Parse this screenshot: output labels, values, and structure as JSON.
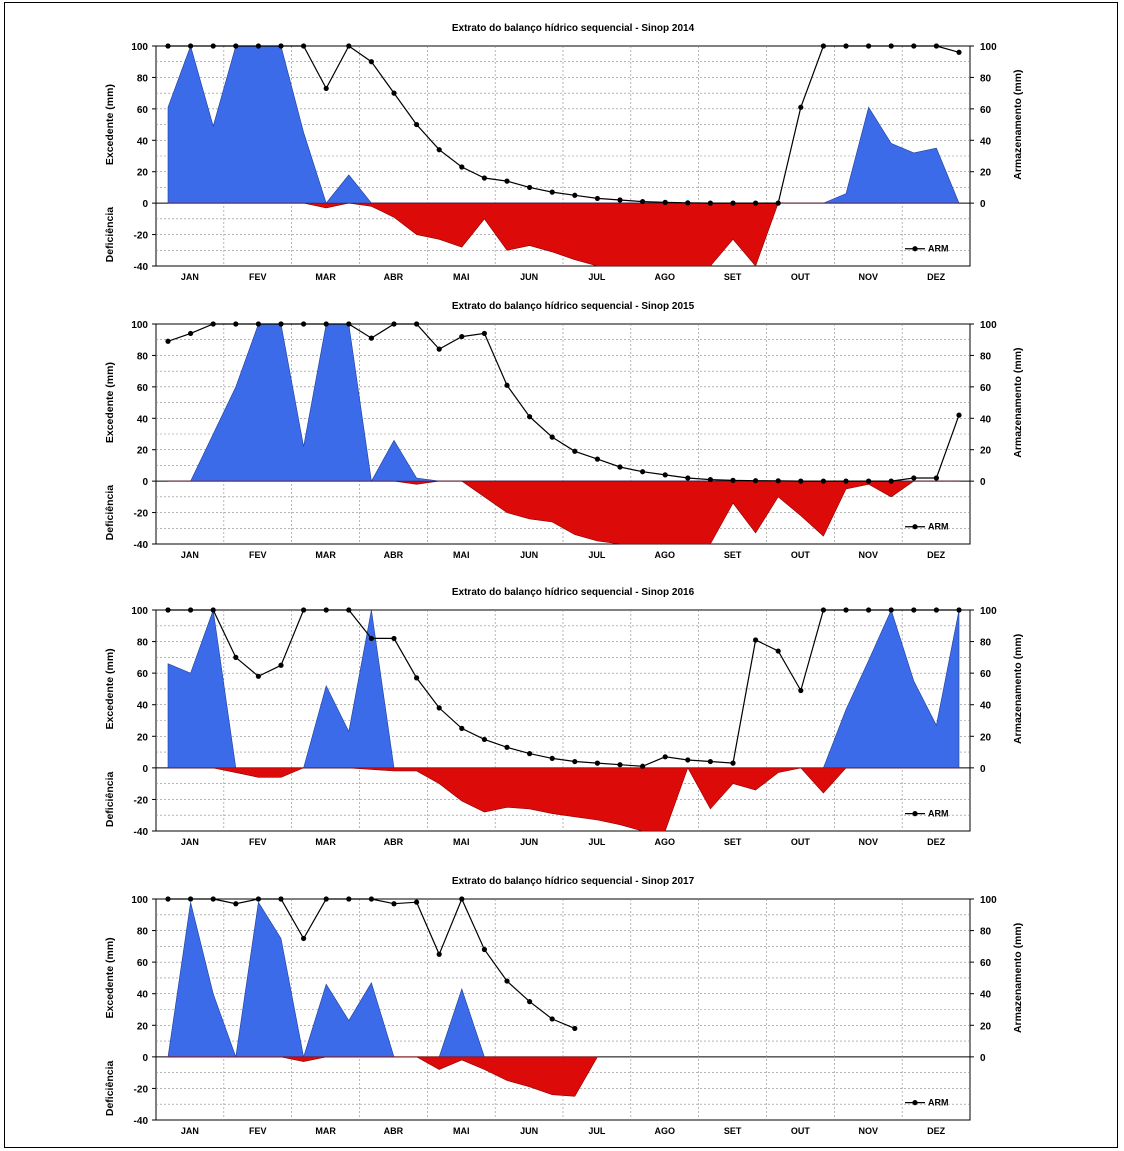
{
  "chart_data": [
    {
      "type": "area",
      "title": "Extrato do balanço hídrico sequencial - Sinop 2014",
      "ylabel_left_top": "Excedente (mm)",
      "ylabel_left_bottom": "Deficiência",
      "ylabel_right": "Armazenamento (mm)",
      "legend": "ARM",
      "legend_position": "bottom-right",
      "grid": true,
      "ylim": [
        -40,
        100
      ],
      "y_ticks_left": [
        "100",
        "80",
        "60",
        "40",
        "20",
        "0",
        "-20",
        "-40"
      ],
      "y_ticks_right": [
        "100",
        "80",
        "60",
        "40",
        "20",
        "0"
      ],
      "months": [
        "JAN",
        "FEV",
        "MAR",
        "ABR",
        "MAI",
        "JUN",
        "JUL",
        "AGO",
        "SET",
        "OUT",
        "NOV",
        "DEZ"
      ],
      "x_unit": "decêndio (1-36)",
      "excedente": [
        61,
        100,
        49,
        100,
        100,
        100,
        45,
        0,
        18,
        0,
        0,
        0,
        0,
        0,
        0,
        0,
        0,
        0,
        0,
        0,
        0,
        0,
        0,
        0,
        0,
        0,
        0,
        0,
        0,
        0,
        6,
        61,
        38,
        32,
        35,
        0
      ],
      "deficiencia": [
        0,
        0,
        0,
        0,
        0,
        0,
        0,
        -3,
        0,
        -2,
        -9,
        -20,
        -23,
        -28,
        -10,
        -30,
        -27,
        -31,
        -36,
        -40,
        -40,
        -40,
        -40,
        -40,
        -40,
        -23,
        -43,
        0,
        0,
        0,
        0,
        0,
        0,
        0,
        0,
        0
      ],
      "armazenamento": [
        100,
        100,
        100,
        100,
        100,
        100,
        100,
        73,
        100,
        90,
        70,
        50,
        34,
        23,
        16,
        14,
        10,
        7,
        5,
        3,
        2,
        1,
        0.5,
        0.2,
        0,
        0,
        0,
        0,
        61,
        100,
        100,
        100,
        100,
        100,
        100,
        96
      ]
    },
    {
      "type": "area",
      "title": "Extrato do balanço hídrico sequencial - Sinop 2015",
      "ylabel_left_top": "Excedente (mm)",
      "ylabel_left_bottom": "Deficiência",
      "ylabel_right": "Armazenamento (mm)",
      "legend": "ARM",
      "legend_position": "bottom-right",
      "grid": true,
      "ylim": [
        -40,
        100
      ],
      "y_ticks_left": [
        "100",
        "80",
        "60",
        "40",
        "20",
        "0",
        "-20",
        "-40"
      ],
      "y_ticks_right": [
        "100",
        "80",
        "60",
        "40",
        "20",
        "0"
      ],
      "months": [
        "JAN",
        "FEV",
        "MAR",
        "ABR",
        "MAI",
        "JUN",
        "JUL",
        "AGO",
        "SET",
        "OUT",
        "NOV",
        "DEZ"
      ],
      "x_unit": "decêndio (1-36)",
      "excedente": [
        0,
        0,
        30,
        60,
        100,
        100,
        22,
        100,
        100,
        0,
        26,
        2,
        0,
        0,
        0,
        0,
        0,
        0,
        0,
        0,
        0,
        0,
        0,
        0,
        0,
        0,
        0,
        0,
        0,
        0,
        0,
        0,
        0,
        0,
        0,
        0
      ],
      "deficiencia": [
        0,
        0,
        0,
        0,
        0,
        0,
        0,
        0,
        0,
        0,
        0,
        -2,
        0,
        0,
        -10,
        -20,
        -24,
        -26,
        -34,
        -38,
        -40,
        -40,
        -40,
        -40,
        -40,
        -14,
        -33,
        -10,
        -22,
        -35,
        -5,
        -2,
        -10,
        0,
        0,
        0
      ],
      "armazenamento": [
        89,
        94,
        100,
        100,
        100,
        100,
        100,
        100,
        100,
        91,
        100,
        100,
        84,
        92,
        94,
        61,
        41,
        28,
        19,
        14,
        9,
        6,
        4,
        2,
        1,
        0.5,
        0.3,
        0.2,
        0,
        0,
        0,
        0,
        0,
        2,
        2,
        42
      ]
    },
    {
      "type": "area",
      "title": "Extrato do balanço hídrico sequencial - Sinop 2016",
      "ylabel_left_top": "Excedente (mm)",
      "ylabel_left_bottom": "Deficiência",
      "ylabel_right": "Armazenamento (mm)",
      "legend": "ARM",
      "legend_position": "bottom-right",
      "grid": true,
      "ylim": [
        -40,
        100
      ],
      "y_ticks_left": [
        "100",
        "80",
        "60",
        "40",
        "20",
        "0",
        "-20",
        "-40"
      ],
      "y_ticks_right": [
        "100",
        "80",
        "60",
        "40",
        "20",
        "0"
      ],
      "months": [
        "JAN",
        "FEV",
        "MAR",
        "ABR",
        "MAI",
        "JUN",
        "JUL",
        "AGO",
        "SET",
        "OUT",
        "NOV",
        "DEZ"
      ],
      "x_unit": "decêndio (1-36)",
      "excedente": [
        66,
        60,
        100,
        0,
        0,
        0,
        0,
        52,
        23,
        100,
        0,
        0,
        0,
        0,
        0,
        0,
        0,
        0,
        0,
        0,
        0,
        0,
        0,
        0,
        0,
        0,
        0,
        0,
        0,
        0,
        37,
        68,
        100,
        55,
        27,
        100
      ],
      "deficiencia": [
        0,
        0,
        0,
        -3,
        -6,
        -6,
        0,
        0,
        0,
        -1,
        -2,
        -2,
        -10,
        -21,
        -28,
        -25,
        -26,
        -29,
        -31,
        -33,
        -36,
        -40,
        -40,
        0,
        -26,
        -10,
        -14,
        -3,
        0,
        -16,
        0,
        0,
        0,
        0,
        0,
        0
      ],
      "armazenamento": [
        100,
        100,
        100,
        70,
        58,
        65,
        100,
        100,
        100,
        82,
        82,
        57,
        38,
        25,
        18,
        13,
        9,
        6,
        4,
        3,
        2,
        1,
        7,
        5,
        4,
        3,
        81,
        74,
        49,
        100,
        100,
        100,
        100,
        100,
        100,
        100
      ]
    },
    {
      "type": "area",
      "title": "Extrato do balanço hídrico sequencial - Sinop 2017",
      "ylabel_left_top": "Excedente (mm)",
      "ylabel_left_bottom": "Deficiência",
      "ylabel_right": "Armazenamento (mm)",
      "legend": "ARM",
      "legend_position": "bottom-right",
      "grid": true,
      "ylim": [
        -40,
        100
      ],
      "y_ticks_left": [
        "100",
        "80",
        "60",
        "40",
        "20",
        "0",
        "-20",
        "-40"
      ],
      "y_ticks_right": [
        "100",
        "80",
        "60",
        "40",
        "20",
        "0"
      ],
      "months": [
        "JAN",
        "FEV",
        "MAR",
        "ABR",
        "MAI",
        "JUN",
        "JUL",
        "AGO",
        "SET",
        "OUT",
        "NOV",
        "DEZ"
      ],
      "x_unit": "decêndio (1-36)",
      "excedente": [
        0,
        98,
        40,
        0,
        98,
        75,
        0,
        46,
        23,
        47,
        0,
        0,
        0,
        43,
        0,
        null,
        null,
        null,
        null,
        null,
        null,
        null,
        null,
        null,
        null,
        null,
        null,
        null,
        null,
        null,
        null,
        null,
        null,
        null,
        null,
        null
      ],
      "deficiencia": [
        0,
        0,
        0,
        0,
        0,
        0,
        -3,
        0,
        0,
        0,
        0,
        0,
        -8,
        -2,
        -8,
        -15,
        -19,
        -24,
        -25,
        0,
        null,
        null,
        null,
        null,
        null,
        null,
        null,
        null,
        null,
        null,
        null,
        null,
        null,
        null,
        null,
        null
      ],
      "armazenamento": [
        100,
        100,
        100,
        97,
        100,
        100,
        75,
        100,
        100,
        100,
        97,
        98,
        65,
        100,
        68,
        48,
        35,
        24,
        18,
        null,
        null,
        null,
        null,
        null,
        null,
        null,
        null,
        null,
        null,
        null,
        null,
        null,
        null,
        null,
        null,
        null
      ]
    }
  ]
}
